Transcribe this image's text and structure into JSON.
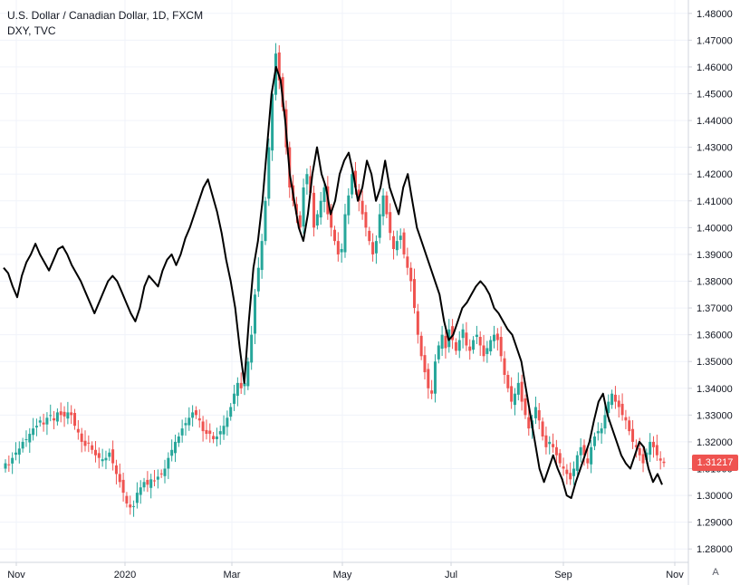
{
  "legend": {
    "main": "U.S. Dollar / Canadian Dollar, 1D, FXCM",
    "compare": "DXY, TVC"
  },
  "last_price_label": "1.31217",
  "scale_mode_label": "A",
  "colors": {
    "up": "#26a69a",
    "down": "#ef5350",
    "compare_line": "#000000",
    "grid": "#f0f3fa",
    "axis_text": "#131722"
  },
  "chart_data": {
    "type": "candlestick",
    "ylim": [
      1.275,
      1.485
    ],
    "yticks": [
      "1.48000",
      "1.47000",
      "1.46000",
      "1.45000",
      "1.44000",
      "1.43000",
      "1.42000",
      "1.41000",
      "1.40000",
      "1.39000",
      "1.38000",
      "1.37000",
      "1.36000",
      "1.35000",
      "1.34000",
      "1.33000",
      "1.32000",
      "1.31000",
      "1.30000",
      "1.29000",
      "1.28000"
    ],
    "xticks": [
      "Nov",
      "2020",
      "Mar",
      "May",
      "Jul",
      "Sep",
      "Nov"
    ],
    "grid": true,
    "series": [
      {
        "name": "U.S. Dollar / Canadian Dollar, 1D, FXCM",
        "kind": "candles",
        "last": 1.31217,
        "closes": [
          1.312,
          1.3115,
          1.314,
          1.316,
          1.3175,
          1.32,
          1.321,
          1.323,
          1.325,
          1.326,
          1.328,
          1.3265,
          1.329,
          1.33,
          1.328,
          1.331,
          1.33,
          1.3295,
          1.331,
          1.33,
          1.326,
          1.3235,
          1.32,
          1.3185,
          1.3195,
          1.317,
          1.315,
          1.314,
          1.3135,
          1.314,
          1.316,
          1.312,
          1.308,
          1.305,
          1.301,
          1.297,
          1.2955,
          1.296,
          1.301,
          1.303,
          1.305,
          1.304,
          1.306,
          1.3055,
          1.307,
          1.308,
          1.31,
          1.314,
          1.317,
          1.32,
          1.322,
          1.325,
          1.327,
          1.329,
          1.331,
          1.33,
          1.328,
          1.324,
          1.323,
          1.323,
          1.321,
          1.322,
          1.324,
          1.326,
          1.329,
          1.333,
          1.338,
          1.342,
          1.34,
          1.342,
          1.35,
          1.36,
          1.375,
          1.385,
          1.395,
          1.41,
          1.43,
          1.45,
          1.465,
          1.455,
          1.445,
          1.43,
          1.415,
          1.41,
          1.405,
          1.4,
          1.415,
          1.42,
          1.413,
          1.4,
          1.405,
          1.41,
          1.415,
          1.405,
          1.4,
          1.395,
          1.39,
          1.392,
          1.405,
          1.412,
          1.42,
          1.415,
          1.41,
          1.405,
          1.4,
          1.395,
          1.39,
          1.395,
          1.405,
          1.412,
          1.405,
          1.398,
          1.392,
          1.395,
          1.397,
          1.39,
          1.385,
          1.38,
          1.37,
          1.36,
          1.352,
          1.346,
          1.34,
          1.338,
          1.35,
          1.356,
          1.36,
          1.355,
          1.362,
          1.358,
          1.354,
          1.358,
          1.362,
          1.356,
          1.354,
          1.358,
          1.36,
          1.356,
          1.352,
          1.355,
          1.358,
          1.36,
          1.358,
          1.352,
          1.345,
          1.34,
          1.335,
          1.338,
          1.342,
          1.335,
          1.33,
          1.325,
          1.328,
          1.333,
          1.328,
          1.322,
          1.318,
          1.32,
          1.318,
          1.315,
          1.312,
          1.31,
          1.308,
          1.306,
          1.31,
          1.315,
          1.318,
          1.315,
          1.312,
          1.318,
          1.322,
          1.324,
          1.325,
          1.33,
          1.335,
          1.338,
          1.335,
          1.333,
          1.33,
          1.328,
          1.324,
          1.32,
          1.318,
          1.315,
          1.312,
          1.316,
          1.32,
          1.318,
          1.315,
          1.313,
          1.3121
        ]
      },
      {
        "name": "DXY, TVC",
        "kind": "line",
        "values": [
          1.385,
          1.383,
          1.378,
          1.374,
          1.382,
          1.387,
          1.39,
          1.394,
          1.39,
          1.387,
          1.384,
          1.388,
          1.392,
          1.393,
          1.39,
          1.386,
          1.383,
          1.38,
          1.376,
          1.372,
          1.368,
          1.372,
          1.376,
          1.38,
          1.382,
          1.38,
          1.376,
          1.372,
          1.368,
          1.365,
          1.37,
          1.378,
          1.382,
          1.38,
          1.378,
          1.384,
          1.388,
          1.39,
          1.386,
          1.39,
          1.396,
          1.4,
          1.405,
          1.41,
          1.415,
          1.418,
          1.412,
          1.406,
          1.398,
          1.388,
          1.38,
          1.37,
          1.355,
          1.342,
          1.365,
          1.385,
          1.395,
          1.41,
          1.43,
          1.45,
          1.46,
          1.455,
          1.44,
          1.42,
          1.41,
          1.4,
          1.395,
          1.405,
          1.42,
          1.43,
          1.42,
          1.415,
          1.405,
          1.41,
          1.42,
          1.425,
          1.428,
          1.42,
          1.41,
          1.415,
          1.425,
          1.42,
          1.41,
          1.415,
          1.425,
          1.415,
          1.41,
          1.405,
          1.415,
          1.42,
          1.41,
          1.4,
          1.395,
          1.39,
          1.385,
          1.38,
          1.375,
          1.365,
          1.358,
          1.36,
          1.365,
          1.37,
          1.372,
          1.375,
          1.378,
          1.38,
          1.378,
          1.375,
          1.37,
          1.368,
          1.365,
          1.362,
          1.36,
          1.355,
          1.35,
          1.34,
          1.33,
          1.32,
          1.31,
          1.305,
          1.31,
          1.315,
          1.31,
          1.306,
          1.3,
          1.299,
          1.305,
          1.31,
          1.315,
          1.32,
          1.328,
          1.335,
          1.338,
          1.33,
          1.325,
          1.32,
          1.315,
          1.312,
          1.31,
          1.315,
          1.32,
          1.318,
          1.31,
          1.305,
          1.308,
          1.304
        ]
      }
    ]
  }
}
